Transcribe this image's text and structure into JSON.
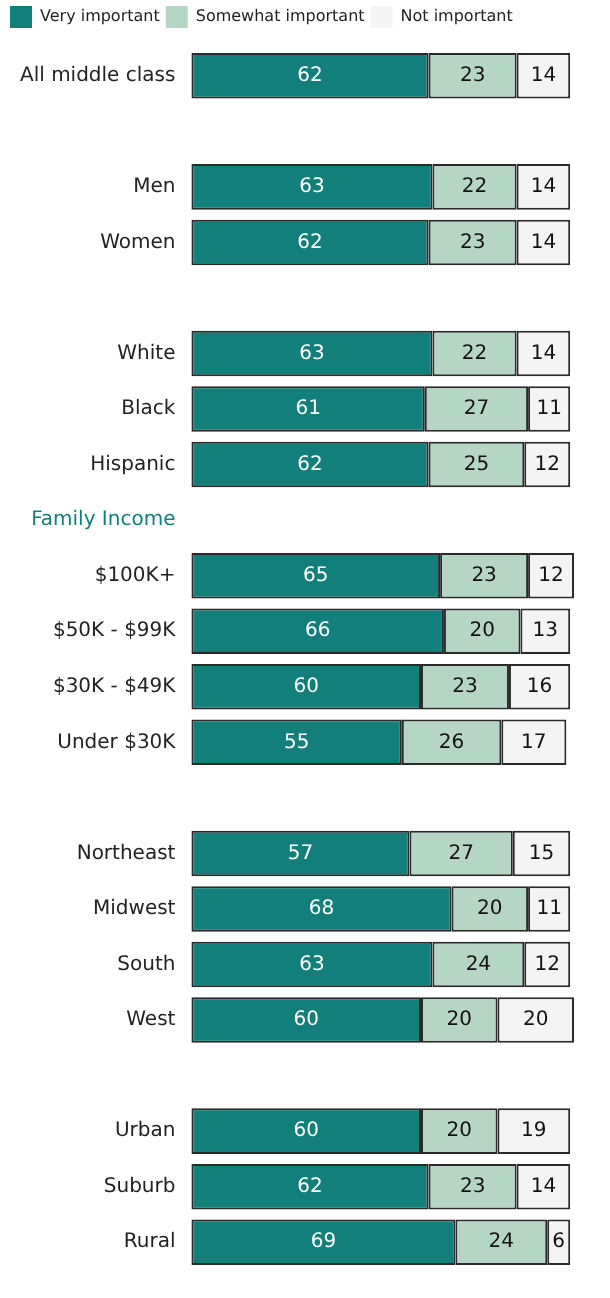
{
  "chart_data": {
    "type": "bar",
    "orientation": "horizontal",
    "stacked": true,
    "data_labels": true,
    "grid": false,
    "legend": "top left",
    "tick_labels": "y",
    "xlim": [
      0,
      100
    ],
    "categories": [
      "All middle class",
      null,
      "Men",
      "Women",
      null,
      "White",
      "Black",
      "Hispanic",
      "Family Income",
      "$100K+",
      "$50K - $99K",
      "$30K - $49K",
      "Under $30K",
      null,
      "Northeast",
      "Midwest",
      "South",
      "West",
      null,
      "Urban",
      "Suburb",
      "Rural"
    ],
    "series": [
      {
        "name": "Very important",
        "color": "#137f7a",
        "values": [
          62,
          null,
          63,
          62,
          null,
          63,
          61,
          62,
          null,
          65,
          66,
          60,
          55,
          null,
          57,
          68,
          63,
          60,
          null,
          60,
          62,
          69
        ]
      },
      {
        "name": "Somewhat important",
        "color": "#b5d5c5",
        "values": [
          23,
          null,
          22,
          23,
          null,
          22,
          27,
          25,
          null,
          23,
          20,
          23,
          26,
          null,
          27,
          20,
          24,
          20,
          null,
          20,
          23,
          24
        ]
      },
      {
        "name": "Not important",
        "color": "#f4f4f4",
        "values": [
          14,
          null,
          14,
          14,
          null,
          14,
          11,
          12,
          null,
          12,
          13,
          16,
          17,
          null,
          15,
          11,
          12,
          20,
          null,
          19,
          14,
          6
        ]
      }
    ]
  }
}
